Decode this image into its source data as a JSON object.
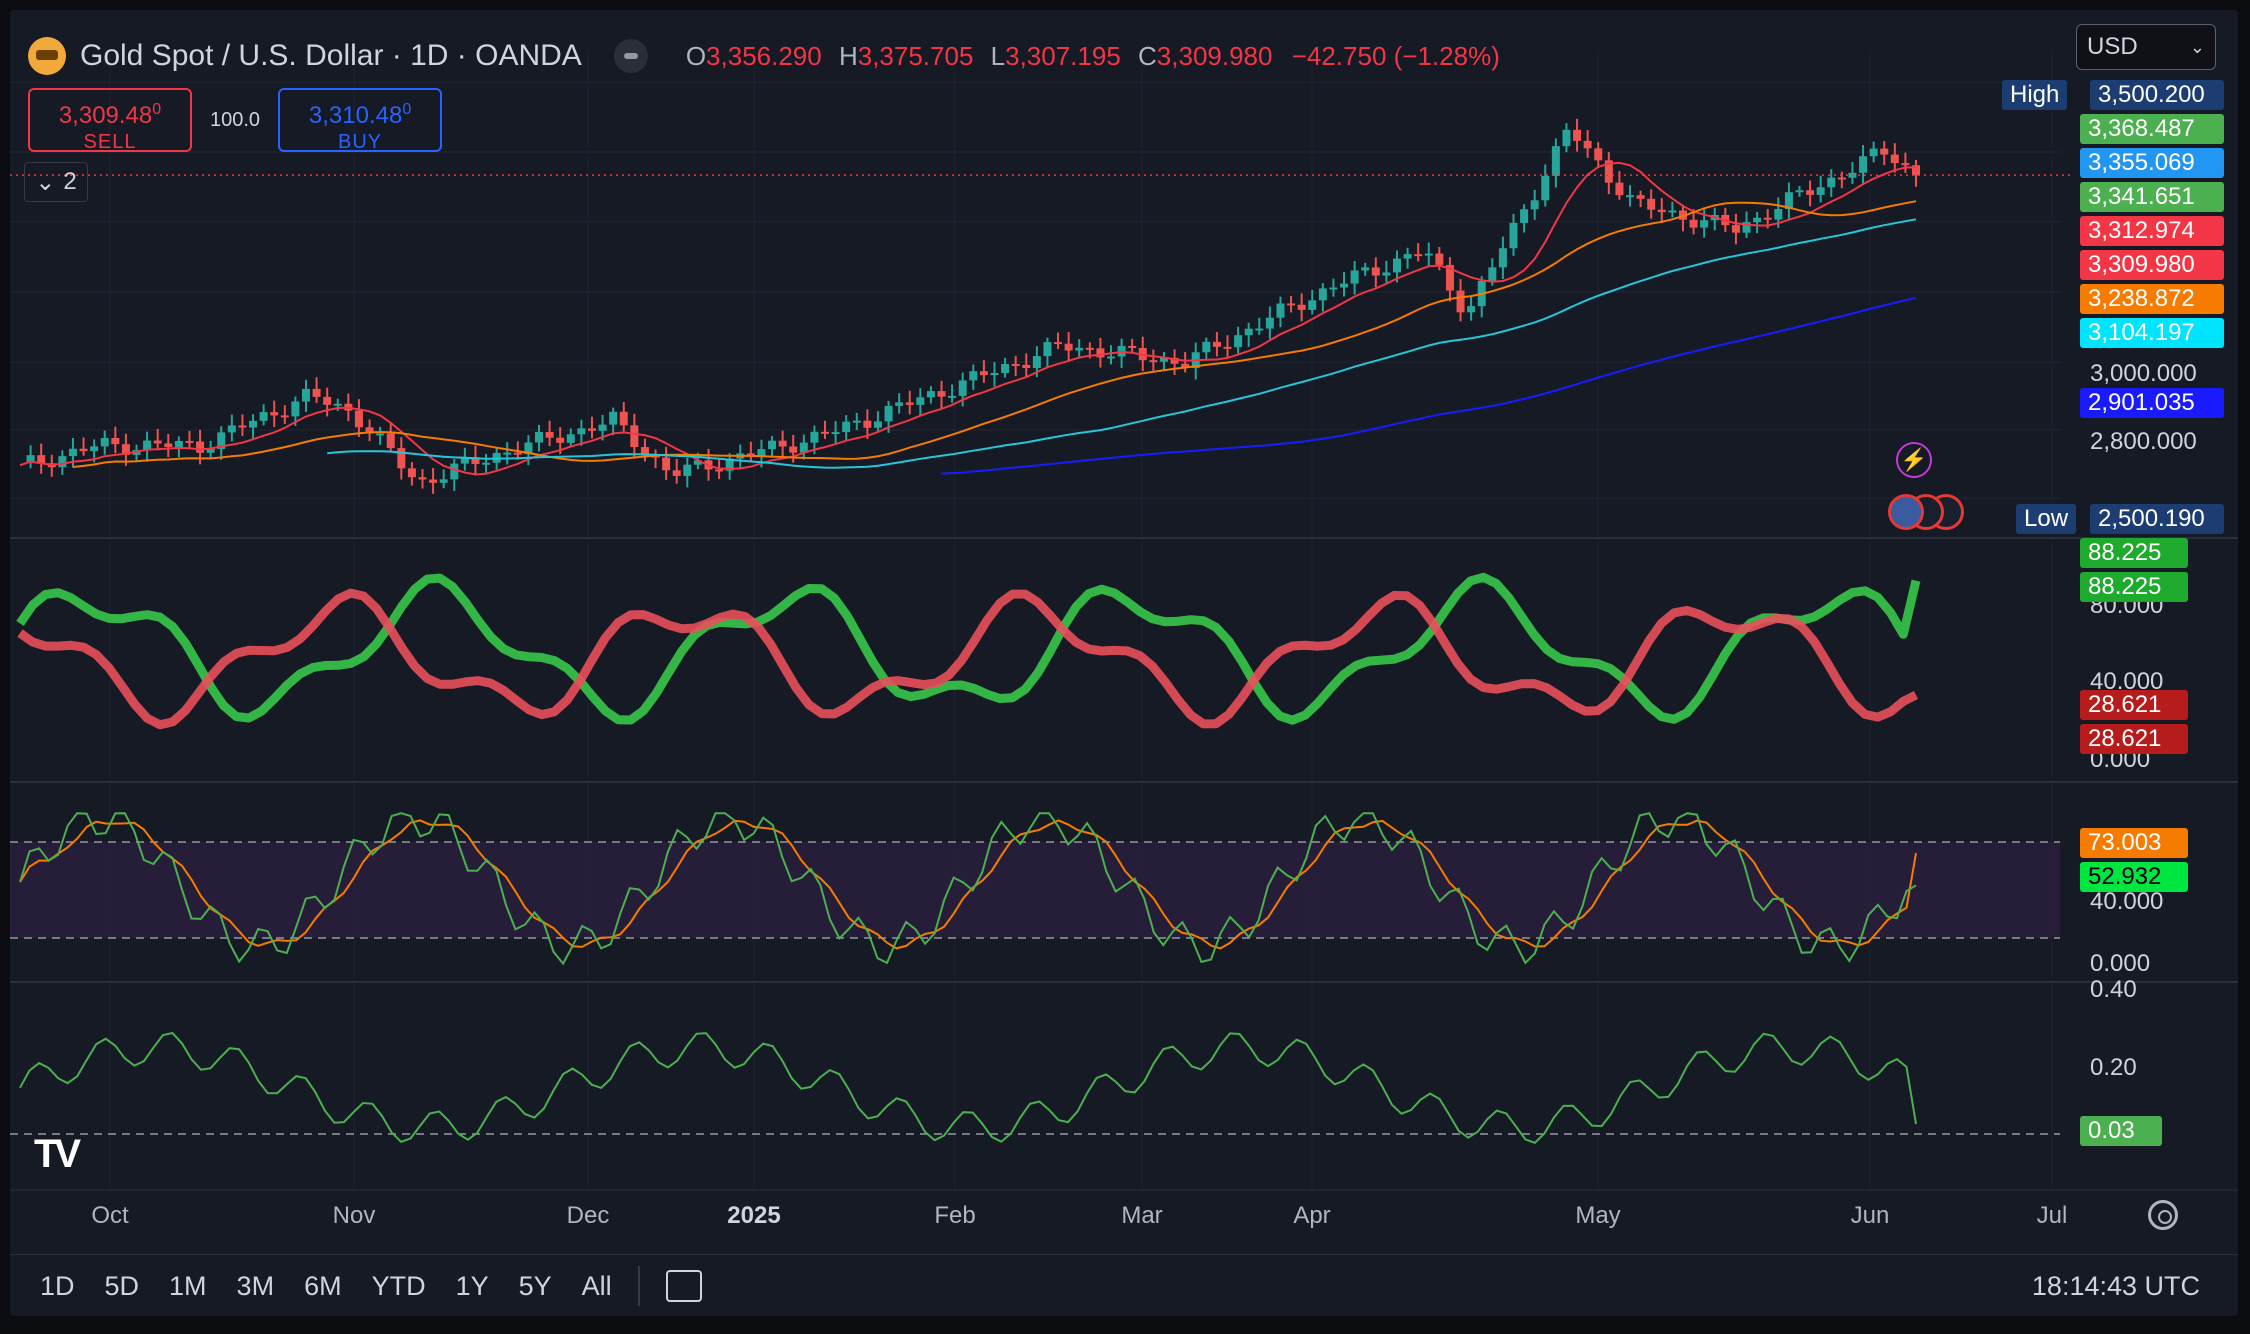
{
  "header": {
    "title": "Gold Spot / U.S. Dollar · 1D · OANDA",
    "ohlc": {
      "o_label": "O",
      "o": "3,356.290",
      "h_label": "H",
      "h": "3,375.705",
      "l_label": "L",
      "l": "3,307.195",
      "c_label": "C",
      "c": "3,309.980",
      "change": "−42.750 (−1.28%)"
    }
  },
  "trade": {
    "sell_price": "3,309.48",
    "sell_price_sup": "0",
    "sell_label": "SELL",
    "spread": "100.0",
    "buy_price": "3,310.48",
    "buy_price_sup": "0",
    "buy_label": "BUY"
  },
  "collapse": {
    "count": "2"
  },
  "currency": {
    "value": "USD"
  },
  "price_axis": {
    "labels": [
      "3,000.000",
      "2,800.000"
    ],
    "high_label": "High",
    "high_value": "3,500.200",
    "low_label": "Low",
    "low_value": "2,500.190",
    "tags": [
      {
        "value": "3,368.487",
        "color": "#4caf50"
      },
      {
        "value": "3,355.069",
        "color": "#2196f3"
      },
      {
        "value": "3,341.651",
        "color": "#4caf50"
      },
      {
        "value": "3,312.974",
        "color": "#f23645"
      },
      {
        "value": "3,309.980",
        "color": "#f23645"
      },
      {
        "value": "3,238.872",
        "color": "#f57c00"
      },
      {
        "value": "3,104.197",
        "color": "#00e5ff"
      },
      {
        "value": "2,901.035",
        "color": "#1a1aff"
      }
    ]
  },
  "pane2": {
    "labels": [
      "80.000",
      "40.000",
      "0.000"
    ],
    "tags": [
      "88.225",
      "88.225",
      "28.621",
      "28.621"
    ],
    "tag_colors": [
      "#1eaa2c",
      "#1eaa2c",
      "#b71c1c",
      "#b71c1c"
    ]
  },
  "pane3": {
    "labels": [
      "40.000",
      "0.000"
    ],
    "tags": [
      "73.003",
      "52.932"
    ],
    "tag_colors": [
      "#f57c00",
      "#00e640"
    ]
  },
  "pane4": {
    "labels": [
      "0.40",
      "0.20"
    ],
    "tag": "0.03",
    "tag_color": "#4caf50"
  },
  "x_axis": [
    {
      "label": "Oct",
      "bold": false
    },
    {
      "label": "Nov",
      "bold": false
    },
    {
      "label": "Dec",
      "bold": false
    },
    {
      "label": "2025",
      "bold": true
    },
    {
      "label": "Feb",
      "bold": false
    },
    {
      "label": "Mar",
      "bold": false
    },
    {
      "label": "Apr",
      "bold": false
    },
    {
      "label": "May",
      "bold": false
    },
    {
      "label": "Jun",
      "bold": false
    },
    {
      "label": "Jul",
      "bold": false
    }
  ],
  "bottom_bar": {
    "ranges": [
      "1D",
      "5D",
      "1M",
      "3M",
      "6M",
      "YTD",
      "1Y",
      "5Y",
      "All"
    ],
    "clock": "18:14:43 UTC"
  },
  "chart_data": {
    "type": "candlestick",
    "title": "Gold Spot / U.S. Dollar · 1D · OANDA",
    "y_range": [
      2500.19,
      3500.2
    ],
    "price_keypoints": [
      {
        "date": "2024-09-20",
        "close": 2610
      },
      {
        "date": "2024-10-01",
        "close": 2660
      },
      {
        "date": "2024-10-15",
        "close": 2660
      },
      {
        "date": "2024-10-30",
        "close": 2780
      },
      {
        "date": "2024-11-05",
        "close": 2740
      },
      {
        "date": "2024-11-14",
        "close": 2570
      },
      {
        "date": "2024-11-25",
        "close": 2640
      },
      {
        "date": "2024-12-11",
        "close": 2720
      },
      {
        "date": "2024-12-19",
        "close": 2590
      },
      {
        "date": "2025-01-10",
        "close": 2690
      },
      {
        "date": "2025-02-11",
        "close": 2900
      },
      {
        "date": "2025-02-28",
        "close": 2860
      },
      {
        "date": "2025-03-20",
        "close": 3040
      },
      {
        "date": "2025-04-02",
        "close": 3130
      },
      {
        "date": "2025-04-08",
        "close": 2980
      },
      {
        "date": "2025-04-22",
        "close": 3420
      },
      {
        "date": "2025-05-01",
        "close": 3240
      },
      {
        "date": "2025-05-15",
        "close": 3180
      },
      {
        "date": "2025-06-05",
        "close": 3370
      },
      {
        "date": "2025-06-09",
        "close": 3309.98
      }
    ],
    "moving_averages": [
      {
        "color": "#f23645",
        "last": 3312.974
      },
      {
        "color": "#f57c00",
        "last": 3238.872
      },
      {
        "color": "#26c6da",
        "last": 3104.197
      },
      {
        "color": "#1a1aff",
        "last": 2901.035
      }
    ],
    "pane2_series": [
      {
        "name_color": "green",
        "last": 88.225
      },
      {
        "name_color": "red",
        "last": 28.621
      }
    ],
    "pane3_series": [
      {
        "color": "#4caf50",
        "last": 52.932
      },
      {
        "color": "#f57c00",
        "last": 73.003
      }
    ],
    "pane3_levels": [
      80,
      20
    ],
    "pane4_last": 0.03,
    "pane4_level": 0
  }
}
